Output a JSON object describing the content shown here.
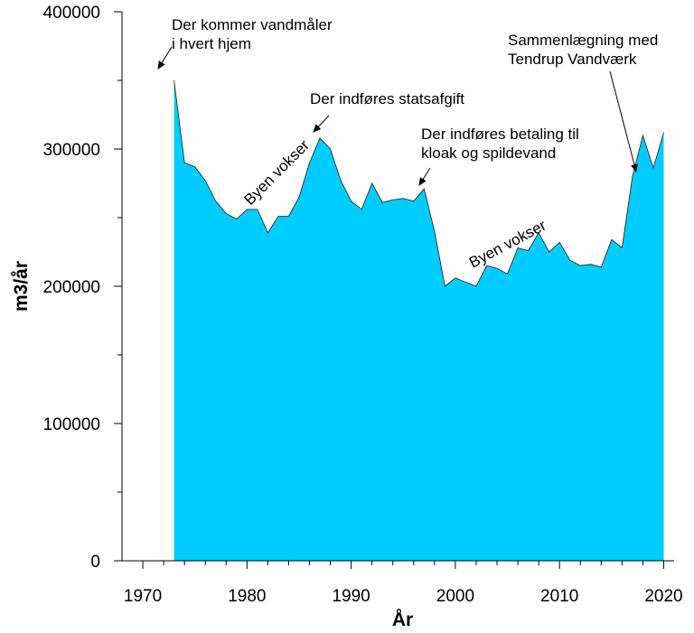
{
  "chart_data": {
    "type": "area",
    "xlabel": "År",
    "ylabel": "m3/år",
    "xlim": [
      1968,
      2021
    ],
    "ylim": [
      0,
      400000
    ],
    "x_ticks": [
      1970,
      1980,
      1990,
      2000,
      2010,
      2020
    ],
    "y_ticks": [
      0,
      100000,
      200000,
      300000,
      400000
    ],
    "fill_color": "#00ccff",
    "grid": false,
    "series": [
      {
        "x": [
          1973,
          1974,
          1975,
          1976,
          1977,
          1978,
          1979,
          1980,
          1981,
          1982,
          1983,
          1984,
          1985,
          1986,
          1987,
          1988,
          1989,
          1990,
          1991,
          1992,
          1993,
          1994,
          1995,
          1996,
          1997,
          1998,
          1999,
          2000,
          2001,
          2002,
          2003,
          2004,
          2005,
          2006,
          2007,
          2008,
          2009,
          2010,
          2011,
          2012,
          2013,
          2014,
          2015,
          2016,
          2017,
          2018,
          2019,
          2020
        ],
        "y": [
          350000,
          290000,
          287000,
          277000,
          262000,
          253000,
          249000,
          256000,
          256000,
          239000,
          251000,
          251000,
          265000,
          290000,
          308000,
          300000,
          277000,
          262000,
          256000,
          275000,
          261000,
          263000,
          264000,
          262000,
          271000,
          240000,
          200000,
          206000,
          203000,
          200000,
          215000,
          213000,
          209000,
          228000,
          226000,
          239000,
          225000,
          232000,
          219000,
          215000,
          216000,
          214000,
          234000,
          228000,
          280000,
          310000,
          286000,
          312000
        ]
      }
    ],
    "annotations": [
      {
        "lines": [
          "Der kommer vandmåler",
          "i hvert hjem"
        ],
        "x": 1973,
        "y": 350000
      },
      {
        "lines": [
          "Der indføres statsafgift"
        ],
        "x": 1987,
        "y": 308000
      },
      {
        "lines": [
          "Der indføres betaling til",
          "kloak og spildevand"
        ],
        "x": 1997,
        "y": 271000
      },
      {
        "lines": [
          "Sammenlægning med",
          "Tendrup Vandværk"
        ],
        "x": 2017,
        "y": 280000
      },
      {
        "lines": [
          "Byen vokser"
        ],
        "x": 1983.5,
        "y": 274000,
        "rotation": -45
      },
      {
        "lines": [
          "Byen vokser"
        ],
        "x": 2006.5,
        "y": 230000,
        "rotation": -28
      }
    ]
  }
}
